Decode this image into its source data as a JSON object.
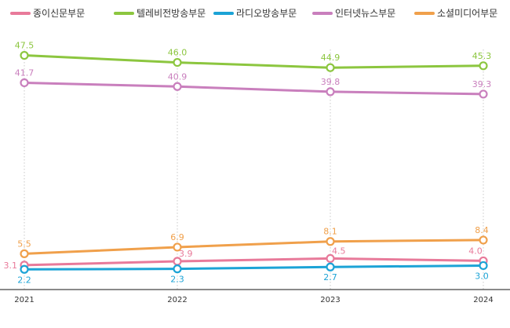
{
  "chart_data": {
    "type": "line",
    "x": [
      "2021",
      "2022",
      "2023",
      "2024"
    ],
    "legend_position": "top",
    "grid": "vertical-dotted",
    "ylim": [
      0,
      50
    ],
    "series": [
      {
        "name": "종이신문부문",
        "color": "#e87a9a",
        "values": [
          3.1,
          3.9,
          4.5,
          4.0
        ],
        "labels": [
          "3.1",
          "3.9",
          "4.5",
          "4.0"
        ]
      },
      {
        "name": "텔레비전방송부문",
        "color": "#8cc63f",
        "values": [
          47.5,
          46.0,
          44.9,
          45.3
        ],
        "labels": [
          "47.5",
          "46.0",
          "44.9",
          "45.3"
        ]
      },
      {
        "name": "라디오방송부문",
        "color": "#1ca3d6",
        "values": [
          2.2,
          2.3,
          2.7,
          3.0
        ],
        "labels": [
          "2.2",
          "2.3",
          "2.7",
          "3.0"
        ]
      },
      {
        "name": "인터넷뉴스부문",
        "color": "#c97fbd",
        "values": [
          41.7,
          40.9,
          39.8,
          39.3
        ],
        "labels": [
          "41.7",
          "40.9",
          "39.8",
          "39.3"
        ]
      },
      {
        "name": "소셜미디어부문",
        "color": "#f0a04b",
        "values": [
          5.5,
          6.9,
          8.1,
          8.4
        ],
        "labels": [
          "5.5",
          "6.9",
          "8.1",
          "8.4"
        ]
      }
    ]
  }
}
